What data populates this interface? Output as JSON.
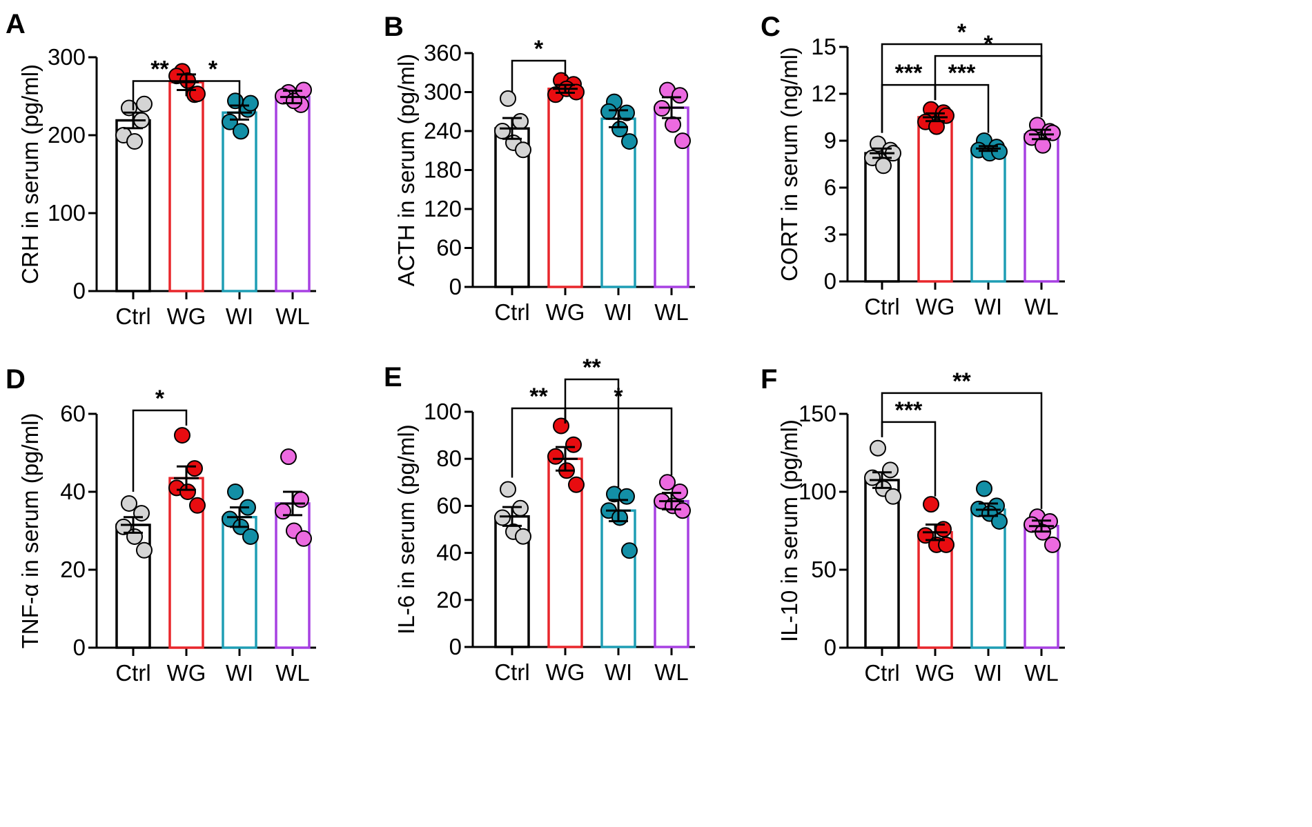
{
  "figure": {
    "categories": [
      "Ctrl",
      "WG",
      "WI",
      "WL"
    ],
    "colors": {
      "bar_edges": [
        "#000000",
        "#e8262b",
        "#1e9db4",
        "#a740e2"
      ],
      "dot_fills": [
        "#d4d4d4",
        "#e80c10",
        "#138fa6",
        "#ec6ae0"
      ]
    }
  },
  "chart_data": [
    {
      "type": "bar",
      "panel": "A",
      "ylabel": "CRH in serum (pg/ml)",
      "ylim": [
        0,
        300
      ],
      "yticks": [
        0,
        100,
        200,
        300
      ],
      "categories": [
        "Ctrl",
        "WG",
        "WI",
        "WL"
      ],
      "values": [
        219,
        268,
        229,
        249
      ],
      "sem": [
        10,
        10,
        9,
        8
      ],
      "points": [
        [
          235,
          219,
          200,
          192,
          240
        ],
        [
          282,
          252,
          276,
          270,
          253
        ],
        [
          244,
          233,
          217,
          205,
          241
        ],
        [
          255,
          239,
          250,
          244,
          258
        ]
      ],
      "significance": [
        {
          "from": 0,
          "to": 1,
          "label": "**",
          "level": 0,
          "leftTo": 232,
          "rightTo": 250
        },
        {
          "from": 1,
          "to": 2,
          "label": "*",
          "level": 0,
          "leftTo": 250,
          "rightTo": 232
        }
      ]
    },
    {
      "type": "bar",
      "panel": "B",
      "ylabel": "ACTH in serum (pg/ml)",
      "ylim": [
        0,
        360
      ],
      "yticks": [
        0,
        60,
        120,
        180,
        240,
        300,
        360
      ],
      "categories": [
        "Ctrl",
        "WG",
        "WI",
        "WL"
      ],
      "values": [
        244,
        305,
        259,
        276
      ],
      "sem": [
        16,
        6,
        13,
        16
      ],
      "points": [
        [
          290,
          255,
          240,
          222,
          211
        ],
        [
          318,
          312,
          296,
          305,
          300
        ],
        [
          285,
          268,
          270,
          243,
          224
        ],
        [
          303,
          295,
          275,
          250,
          225
        ]
      ],
      "significance": [
        {
          "from": 0,
          "to": 1,
          "label": "*",
          "level": 0,
          "leftTo": 300,
          "rightTo": 325
        }
      ]
    },
    {
      "type": "bar",
      "panel": "C",
      "ylabel": "CORT in serum (ng/ml)",
      "ylim": [
        0,
        15
      ],
      "yticks": [
        0,
        3,
        6,
        9,
        12,
        15
      ],
      "categories": [
        "Ctrl",
        "WG",
        "WI",
        "WL"
      ],
      "values": [
        8.2,
        10.5,
        8.5,
        9.4
      ],
      "sem": [
        0.3,
        0.25,
        0.15,
        0.3
      ],
      "points": [
        [
          8.8,
          8.4,
          7.9,
          7.4,
          8.2
        ],
        [
          11.0,
          10.8,
          10.2,
          9.9,
          10.6
        ],
        [
          9.0,
          8.6,
          8.4,
          8.2,
          8.3
        ],
        [
          10.0,
          9.6,
          9.2,
          8.7,
          9.5
        ]
      ],
      "significance": [
        {
          "from": 0,
          "to": 1,
          "label": "***",
          "level": 0,
          "leftTo": 9.5,
          "rightTo": 11.6
        },
        {
          "from": 1,
          "to": 2,
          "label": "***",
          "level": 0,
          "leftTo": 11.6,
          "rightTo": 9.5
        },
        {
          "from": 1,
          "to": 3,
          "label": "*",
          "level": 1,
          "leftTo": 11.6,
          "rightTo": 10.5
        },
        {
          "from": 0,
          "to": 3,
          "label": "*",
          "level": 2,
          "leftTo": 9.5,
          "rightTo": 10.5
        }
      ]
    },
    {
      "type": "bar",
      "panel": "D",
      "ylabel": "TNF-α in serum (pg/ml)",
      "ylim": [
        0,
        60
      ],
      "yticks": [
        0,
        20,
        40,
        60
      ],
      "categories": [
        "Ctrl",
        "WG",
        "WI",
        "WL"
      ],
      "values": [
        31.5,
        43.5,
        33.5,
        37
      ],
      "sem": [
        2,
        3,
        2.5,
        3
      ],
      "points": [
        [
          37,
          34.5,
          31,
          28.5,
          25
        ],
        [
          54.5,
          46,
          41,
          40,
          36.5
        ],
        [
          40,
          36,
          33,
          31,
          28.5
        ],
        [
          49,
          38,
          35,
          30,
          28
        ]
      ],
      "significance": [
        {
          "from": 0,
          "to": 1,
          "label": "*",
          "level": 0,
          "leftTo": 40,
          "rightTo": 57
        }
      ]
    },
    {
      "type": "bar",
      "panel": "E",
      "ylabel": "IL-6 in serum (pg/ml)",
      "ylim": [
        0,
        100
      ],
      "yticks": [
        0,
        20,
        40,
        60,
        80,
        100
      ],
      "categories": [
        "Ctrl",
        "WG",
        "WI",
        "WL"
      ],
      "values": [
        55.5,
        80,
        58,
        62
      ],
      "sem": [
        4,
        5,
        4.5,
        3.5
      ],
      "points": [
        [
          67,
          59,
          55,
          49,
          47
        ],
        [
          94,
          86,
          81,
          75,
          69
        ],
        [
          65,
          64,
          58,
          55,
          41
        ],
        [
          70,
          66,
          62,
          60,
          58
        ]
      ],
      "significance": [
        {
          "from": 0,
          "to": 1,
          "label": "**",
          "level": 0,
          "leftTo": 72,
          "rightTo": 95
        },
        {
          "from": 1,
          "to": 2,
          "label": "**",
          "level": 1,
          "leftTo": 95,
          "rightTo": 68
        },
        {
          "from": 1,
          "to": 3,
          "label": "*",
          "level": 0,
          "leftTo": 95,
          "rightTo": 73
        }
      ]
    },
    {
      "type": "bar",
      "panel": "F",
      "ylabel": "IL-10 in serum (pg/ml)",
      "ylim": [
        0,
        150
      ],
      "yticks": [
        0,
        50,
        100,
        150
      ],
      "categories": [
        "Ctrl",
        "WG",
        "WI",
        "WL"
      ],
      "values": [
        107.5,
        74,
        88.5,
        78
      ],
      "sem": [
        5,
        5,
        4,
        3.5
      ],
      "points": [
        [
          128,
          114,
          109,
          102,
          97
        ],
        [
          92,
          76,
          72,
          66,
          66
        ],
        [
          102,
          91,
          89,
          86,
          81
        ],
        [
          84,
          81,
          79,
          74,
          66
        ]
      ],
      "significance": [
        {
          "from": 0,
          "to": 1,
          "label": "***",
          "level": 0,
          "leftTo": 135,
          "rightTo": 97
        },
        {
          "from": 0,
          "to": 3,
          "label": "**",
          "level": 1,
          "leftTo": 135,
          "rightTo": 89
        }
      ]
    }
  ]
}
